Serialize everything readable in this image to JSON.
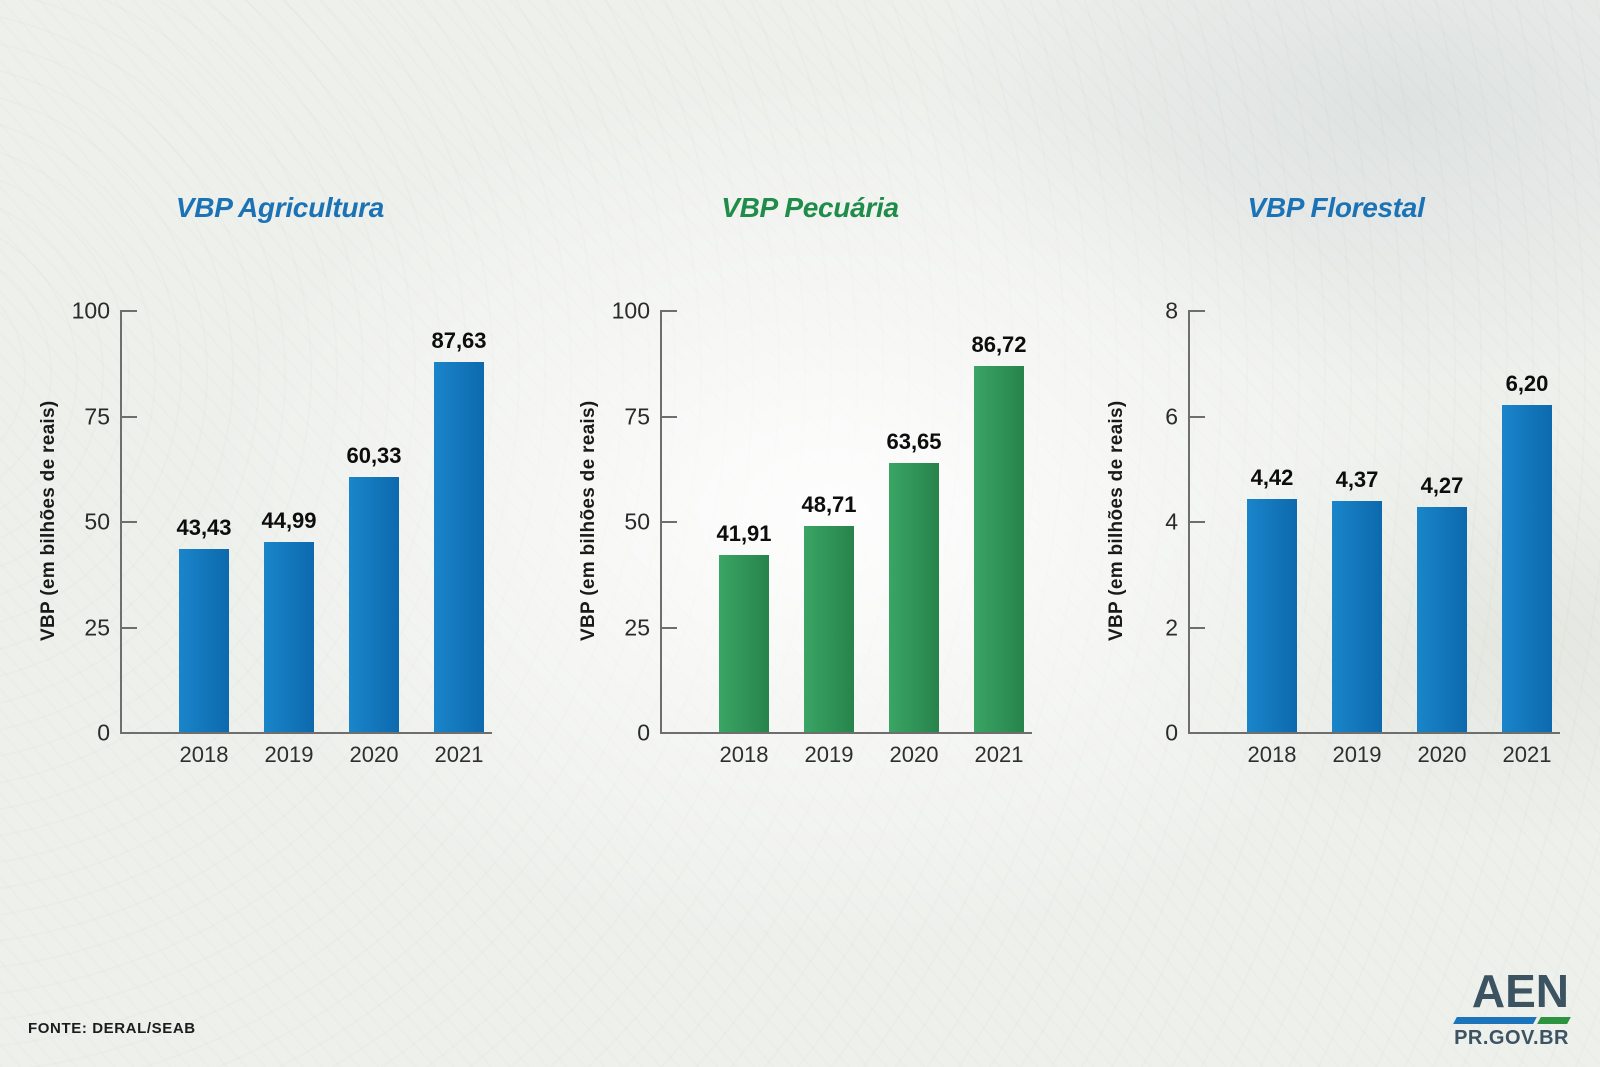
{
  "background": {
    "base_color": "#eef0ec"
  },
  "footer": {
    "source": "FONTE: DERAL/SEAB"
  },
  "logo": {
    "name": "AEN",
    "site": "PR.GOV.BR",
    "text_color": "#3c5362",
    "stripe_blue": "#1c75bb",
    "stripe_green": "#2c9440"
  },
  "chart_data": [
    {
      "type": "bar",
      "key": "agricultura",
      "title": "VBP Agricultura",
      "title_color": "#1b72b5",
      "bar_gradient": [
        "#1a85ca",
        "#0d69ad"
      ],
      "categories": [
        "2018",
        "2019",
        "2020",
        "2021"
      ],
      "values": [
        43.43,
        44.99,
        60.33,
        87.63
      ],
      "value_labels": [
        "43,43",
        "44,99",
        "60,33",
        "87,63"
      ],
      "ylabel": "VBP (em bilhões de reais)",
      "ylim": [
        0,
        100
      ],
      "yticks": [
        100,
        75,
        50,
        25,
        0
      ],
      "grid": false,
      "legend": "none"
    },
    {
      "type": "bar",
      "key": "pecuaria",
      "title": "VBP Pecuária",
      "title_color": "#1f8c49",
      "bar_gradient": [
        "#3aa565",
        "#27834a"
      ],
      "categories": [
        "2018",
        "2019",
        "2020",
        "2021"
      ],
      "values": [
        41.91,
        48.71,
        63.65,
        86.72
      ],
      "value_labels": [
        "41,91",
        "48,71",
        "63,65",
        "86,72"
      ],
      "ylabel": "VBP (em bilhões de reais)",
      "ylim": [
        0,
        100
      ],
      "yticks": [
        100,
        75,
        50,
        25,
        0
      ],
      "grid": false,
      "legend": "none"
    },
    {
      "type": "bar",
      "key": "florestal",
      "title": "VBP Florestal",
      "title_color": "#1b72b5",
      "bar_gradient": [
        "#1a85ca",
        "#0d69ad"
      ],
      "categories": [
        "2018",
        "2019",
        "2020",
        "2021"
      ],
      "values": [
        4.42,
        4.37,
        4.27,
        6.2
      ],
      "value_labels": [
        "4,42",
        "4,37",
        "4,27",
        "6,20"
      ],
      "ylabel": "VBP (em bilhões de reais)",
      "ylim": [
        0,
        8
      ],
      "yticks": [
        8,
        6,
        4,
        2,
        0
      ],
      "grid": false,
      "legend": "none"
    }
  ]
}
